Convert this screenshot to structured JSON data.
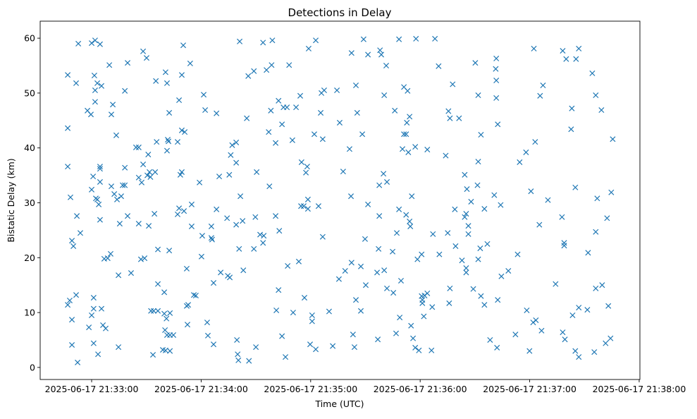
{
  "chart_data": {
    "type": "scatter",
    "title": "Detections in Delay",
    "xlabel": "Time (UTC)",
    "ylabel": "Bistatic Delay (km)",
    "x_unit": "seconds after 2025-06-17 21:32:00",
    "xlim": [
      31.8,
      360.4
    ],
    "ylim": [
      -2.2,
      63.1
    ],
    "grid": false,
    "marker": "x",
    "color": "#1f77b4",
    "x_ticks": [
      {
        "value": 60,
        "label": "2025-06-17 21:33:00"
      },
      {
        "value": 120,
        "label": "2025-06-17 21:34:00"
      },
      {
        "value": 180,
        "label": "2025-06-17 21:35:00"
      },
      {
        "value": 240,
        "label": "2025-06-17 21:36:00"
      },
      {
        "value": 300,
        "label": "2025-06-17 21:37:00"
      },
      {
        "value": 360,
        "label": "2025-06-17 21:38:00"
      }
    ],
    "y_ticks": [
      {
        "value": 0,
        "label": "0"
      },
      {
        "value": 10,
        "label": "10"
      },
      {
        "value": 20,
        "label": "20"
      },
      {
        "value": 30,
        "label": "30"
      },
      {
        "value": 40,
        "label": "40"
      },
      {
        "value": 50,
        "label": "50"
      },
      {
        "value": 60,
        "label": "60"
      }
    ],
    "points": [
      [
        46.9,
        53.3
      ],
      [
        46.9,
        43.6
      ],
      [
        46.9,
        36.6
      ],
      [
        48.4,
        31.0
      ],
      [
        49.2,
        23.1
      ],
      [
        50.0,
        22.1
      ],
      [
        46.9,
        11.4
      ],
      [
        48.0,
        12.2
      ],
      [
        49.2,
        8.7
      ],
      [
        49.2,
        4.1
      ],
      [
        51.5,
        13.2
      ],
      [
        52.3,
        0.9
      ],
      [
        52.7,
        59.0
      ],
      [
        51.5,
        51.8
      ],
      [
        51.9,
        27.6
      ],
      [
        53.8,
        24.5
      ],
      [
        57.7,
        46.8
      ],
      [
        59.6,
        46.1
      ],
      [
        60.0,
        59.1
      ],
      [
        61.9,
        59.6
      ],
      [
        64.6,
        58.9
      ],
      [
        61.5,
        53.2
      ],
      [
        61.9,
        50.5
      ],
      [
        63.1,
        51.8
      ],
      [
        65.4,
        51.3
      ],
      [
        61.9,
        48.4
      ],
      [
        60.8,
        34.8
      ],
      [
        60.0,
        32.4
      ],
      [
        62.3,
        30.8
      ],
      [
        63.9,
        29.7
      ],
      [
        63.1,
        30.6
      ],
      [
        64.6,
        36.6
      ],
      [
        64.6,
        36.2
      ],
      [
        64.6,
        33.8
      ],
      [
        64.6,
        26.9
      ],
      [
        58.5,
        7.3
      ],
      [
        60.0,
        9.5
      ],
      [
        61.1,
        12.7
      ],
      [
        61.1,
        10.7
      ],
      [
        61.1,
        4.4
      ],
      [
        63.5,
        2.4
      ],
      [
        65.4,
        10.7
      ],
      [
        66.2,
        7.7
      ],
      [
        67.7,
        7.1
      ],
      [
        66.9,
        19.8
      ],
      [
        68.8,
        19.9
      ],
      [
        70.4,
        20.7
      ],
      [
        69.7,
        55.1
      ],
      [
        71.6,
        47.9
      ],
      [
        70.8,
        46.1
      ],
      [
        73.5,
        42.3
      ],
      [
        70.8,
        33.0
      ],
      [
        72.4,
        31.6
      ],
      [
        73.9,
        30.6
      ],
      [
        76.2,
        31.2
      ],
      [
        77.0,
        33.2
      ],
      [
        78.2,
        33.2
      ],
      [
        75.4,
        26.2
      ],
      [
        74.7,
        16.8
      ],
      [
        74.7,
        3.7
      ],
      [
        78.2,
        50.4
      ],
      [
        79.7,
        55.5
      ],
      [
        78.2,
        36.4
      ],
      [
        79.7,
        27.6
      ],
      [
        81.6,
        17.2
      ],
      [
        84.3,
        40.1
      ],
      [
        85.8,
        40.1
      ],
      [
        85.8,
        34.6
      ],
      [
        87.4,
        33.7
      ],
      [
        88.2,
        37.0
      ],
      [
        85.8,
        26.2
      ],
      [
        87.0,
        19.7
      ],
      [
        89.0,
        19.9
      ],
      [
        88.2,
        57.6
      ],
      [
        90.1,
        56.4
      ],
      [
        90.5,
        35.0
      ],
      [
        91.7,
        35.6
      ],
      [
        91.0,
        38.8
      ],
      [
        92.2,
        34.7
      ],
      [
        91.3,
        25.8
      ],
      [
        92.5,
        10.3
      ],
      [
        94.0,
        10.3
      ],
      [
        93.6,
        2.3
      ],
      [
        95.2,
        52.2
      ],
      [
        95.6,
        41.1
      ],
      [
        94.8,
        35.6
      ],
      [
        94.4,
        28.0
      ],
      [
        96.3,
        21.5
      ],
      [
        96.3,
        15.2
      ],
      [
        96.3,
        10.3
      ],
      [
        100.5,
        53.8
      ],
      [
        101.3,
        51.8
      ],
      [
        102.5,
        46.4
      ],
      [
        101.7,
        41.5
      ],
      [
        101.3,
        39.5
      ],
      [
        102.1,
        41.2
      ],
      [
        99.8,
        13.7
      ],
      [
        99.8,
        9.8
      ],
      [
        101.0,
        8.9
      ],
      [
        102.9,
        9.9
      ],
      [
        100.2,
        6.8
      ],
      [
        101.3,
        5.9
      ],
      [
        102.9,
        5.9
      ],
      [
        99.0,
        3.2
      ],
      [
        100.5,
        3.1
      ],
      [
        102.9,
        3.0
      ],
      [
        104.8,
        5.9
      ],
      [
        102.5,
        21.3
      ],
      [
        107.1,
        41.1
      ],
      [
        107.9,
        48.7
      ],
      [
        108.6,
        35.1
      ],
      [
        109.4,
        35.6
      ],
      [
        110.2,
        58.7
      ],
      [
        109.4,
        53.3
      ],
      [
        109.4,
        43.2
      ],
      [
        111.0,
        42.9
      ],
      [
        107.9,
        29.0
      ],
      [
        107.1,
        27.9
      ],
      [
        110.6,
        28.5
      ],
      [
        114.0,
        55.4
      ],
      [
        114.8,
        29.7
      ],
      [
        114.8,
        25.7
      ],
      [
        112.1,
        18.0
      ],
      [
        112.9,
        11.4
      ],
      [
        112.1,
        11.2
      ],
      [
        112.5,
        7.8
      ],
      [
        116.0,
        13.2
      ],
      [
        117.1,
        13.1
      ],
      [
        119.1,
        33.7
      ],
      [
        121.4,
        49.7
      ],
      [
        122.2,
        46.9
      ],
      [
        120.6,
        24.0
      ],
      [
        120.2,
        20.2
      ],
      [
        123.3,
        8.2
      ],
      [
        123.7,
        5.8
      ],
      [
        126.8,
        4.2
      ],
      [
        126.0,
        23.3
      ],
      [
        125.6,
        25.7
      ],
      [
        125.6,
        23.6
      ],
      [
        126.8,
        15.4
      ],
      [
        128.4,
        46.3
      ],
      [
        128.4,
        28.8
      ],
      [
        129.9,
        34.8
      ],
      [
        130.7,
        17.3
      ],
      [
        134.6,
        16.7
      ],
      [
        135.7,
        16.4
      ],
      [
        134.2,
        27.2
      ],
      [
        135.4,
        35.1
      ],
      [
        136.2,
        38.7
      ],
      [
        137.0,
        40.5
      ],
      [
        139.2,
        41.0
      ],
      [
        139.2,
        37.3
      ],
      [
        139.2,
        26.0
      ],
      [
        139.6,
        5.0
      ],
      [
        140.0,
        2.4
      ],
      [
        140.4,
        1.3
      ],
      [
        141.1,
        59.4
      ],
      [
        140.8,
        21.6
      ],
      [
        141.5,
        31.2
      ],
      [
        142.7,
        26.7
      ],
      [
        143.1,
        17.7
      ],
      [
        145.0,
        45.4
      ],
      [
        145.8,
        53.1
      ],
      [
        146.2,
        1.2
      ],
      [
        148.9,
        54.0
      ],
      [
        148.9,
        21.6
      ],
      [
        150.4,
        35.6
      ],
      [
        149.7,
        27.4
      ],
      [
        150.0,
        3.7
      ],
      [
        152.3,
        24.2
      ],
      [
        154.3,
        24.0
      ],
      [
        153.9,
        22.7
      ],
      [
        153.9,
        59.2
      ],
      [
        155.8,
        54.2
      ],
      [
        157.0,
        42.9
      ],
      [
        157.4,
        33.0
      ],
      [
        158.2,
        46.8
      ],
      [
        158.6,
        55.1
      ],
      [
        159.0,
        59.6
      ],
      [
        161.2,
        10.4
      ],
      [
        160.8,
        27.6
      ],
      [
        160.8,
        40.9
      ],
      [
        162.4,
        48.6
      ],
      [
        162.4,
        14.1
      ],
      [
        162.8,
        24.9
      ],
      [
        164.3,
        44.3
      ],
      [
        164.3,
        5.7
      ],
      [
        165.1,
        47.4
      ],
      [
        166.2,
        1.9
      ],
      [
        167.0,
        47.4
      ],
      [
        167.4,
        18.5
      ],
      [
        168.2,
        55.1
      ],
      [
        170.0,
        41.4
      ],
      [
        170.4,
        10.0
      ],
      [
        172.0,
        47.4
      ],
      [
        173.5,
        19.3
      ],
      [
        174.3,
        49.5
      ],
      [
        175.0,
        37.4
      ],
      [
        174.7,
        29.4
      ],
      [
        176.2,
        29.4
      ],
      [
        176.6,
        12.7
      ],
      [
        177.4,
        35.5
      ],
      [
        178.1,
        36.6
      ],
      [
        178.5,
        30.6
      ],
      [
        178.5,
        28.9
      ],
      [
        178.9,
        58.1
      ],
      [
        179.7,
        4.2
      ],
      [
        180.8,
        9.5
      ],
      [
        180.8,
        8.4
      ],
      [
        182.0,
        42.5
      ],
      [
        182.8,
        59.6
      ],
      [
        182.8,
        3.3
      ],
      [
        184.3,
        29.4
      ],
      [
        185.5,
        46.4
      ],
      [
        186.6,
        23.8
      ],
      [
        185.9,
        50.0
      ],
      [
        187.4,
        50.5
      ],
      [
        186.6,
        41.6
      ],
      [
        190.1,
        10.2
      ],
      [
        192.1,
        3.9
      ],
      [
        194.4,
        50.5
      ],
      [
        195.5,
        16.1
      ],
      [
        195.9,
        44.6
      ],
      [
        197.8,
        35.7
      ],
      [
        198.9,
        17.6
      ],
      [
        201.3,
        39.8
      ],
      [
        202.1,
        31.2
      ],
      [
        202.4,
        19.1
      ],
      [
        202.4,
        57.3
      ],
      [
        203.2,
        6.0
      ],
      [
        204.0,
        3.7
      ],
      [
        204.8,
        12.3
      ],
      [
        204.8,
        51.4
      ],
      [
        205.5,
        46.4
      ],
      [
        207.5,
        10.3
      ],
      [
        207.5,
        18.4
      ],
      [
        208.3,
        42.5
      ],
      [
        209.0,
        59.8
      ],
      [
        209.8,
        23.4
      ],
      [
        210.2,
        15.0
      ],
      [
        211.4,
        57.0
      ],
      [
        211.4,
        29.7
      ],
      [
        216.4,
        17.3
      ],
      [
        216.8,
        5.1
      ],
      [
        217.2,
        21.6
      ],
      [
        217.6,
        33.2
      ],
      [
        217.6,
        27.6
      ],
      [
        218.0,
        57.8
      ],
      [
        218.7,
        57.0
      ],
      [
        219.9,
        35.3
      ],
      [
        220.3,
        17.7
      ],
      [
        220.3,
        49.6
      ],
      [
        221.4,
        55.0
      ],
      [
        221.8,
        33.8
      ],
      [
        221.8,
        14.4
      ],
      [
        224.9,
        21.1
      ],
      [
        225.3,
        13.6
      ],
      [
        226.1,
        46.8
      ],
      [
        226.8,
        6.2
      ],
      [
        227.2,
        24.5
      ],
      [
        228.4,
        59.8
      ],
      [
        228.8,
        9.1
      ],
      [
        228.4,
        28.8
      ],
      [
        229.5,
        15.8
      ],
      [
        230.3,
        39.8
      ],
      [
        231.1,
        42.5
      ],
      [
        231.1,
        51.1
      ],
      [
        232.3,
        42.5
      ],
      [
        232.3,
        27.8
      ],
      [
        232.7,
        44.6
      ],
      [
        233.1,
        50.4
      ],
      [
        233.5,
        39.2
      ],
      [
        234.2,
        26.6
      ],
      [
        234.2,
        45.7
      ],
      [
        234.6,
        25.7
      ],
      [
        235.0,
        7.6
      ],
      [
        235.4,
        31.2
      ],
      [
        236.1,
        5.3
      ],
      [
        237.3,
        3.6
      ],
      [
        237.7,
        59.9
      ],
      [
        237.3,
        40.2
      ],
      [
        238.5,
        19.7
      ],
      [
        239.3,
        3.1
      ],
      [
        240.8,
        20.6
      ],
      [
        240.8,
        13.0
      ],
      [
        241.2,
        12.3
      ],
      [
        241.2,
        11.7
      ],
      [
        242.0,
        9.3
      ],
      [
        242.4,
        13.1
      ],
      [
        243.9,
        13.5
      ],
      [
        243.9,
        39.7
      ],
      [
        246.2,
        3.1
      ],
      [
        247.0,
        24.3
      ],
      [
        246.6,
        11.0
      ],
      [
        248.1,
        59.9
      ],
      [
        250.1,
        54.9
      ],
      [
        250.5,
        20.6
      ],
      [
        254.0,
        38.6
      ],
      [
        255.1,
        24.5
      ],
      [
        255.5,
        46.7
      ],
      [
        256.3,
        45.4
      ],
      [
        256.3,
        14.4
      ],
      [
        255.9,
        11.7
      ],
      [
        257.8,
        51.6
      ],
      [
        259.0,
        28.8
      ],
      [
        259.4,
        22.1
      ],
      [
        261.3,
        45.4
      ],
      [
        262.9,
        19.5
      ],
      [
        264.4,
        35.1
      ],
      [
        265.2,
        18.1
      ],
      [
        265.6,
        32.5
      ],
      [
        265.2,
        17.3
      ],
      [
        264.4,
        27.4
      ],
      [
        265.2,
        28.0
      ],
      [
        266.4,
        25.8
      ],
      [
        266.4,
        24.3
      ],
      [
        267.9,
        30.2
      ],
      [
        269.1,
        14.3
      ],
      [
        270.2,
        55.5
      ],
      [
        271.4,
        33.2
      ],
      [
        271.8,
        49.6
      ],
      [
        271.8,
        37.5
      ],
      [
        271.8,
        19.7
      ],
      [
        273.3,
        13.0
      ],
      [
        273.3,
        42.4
      ],
      [
        272.9,
        21.7
      ],
      [
        275.2,
        28.9
      ],
      [
        275.2,
        11.4
      ],
      [
        276.8,
        22.5
      ],
      [
        278.3,
        5.0
      ],
      [
        280.6,
        31.4
      ],
      [
        281.4,
        54.4
      ],
      [
        281.7,
        56.3
      ],
      [
        281.7,
        52.3
      ],
      [
        281.7,
        49.1
      ],
      [
        282.1,
        3.6
      ],
      [
        282.5,
        12.3
      ],
      [
        282.5,
        44.3
      ],
      [
        284.1,
        29.6
      ],
      [
        284.5,
        16.6
      ],
      [
        288.3,
        17.6
      ],
      [
        292.2,
        6.0
      ],
      [
        293.4,
        20.6
      ],
      [
        294.5,
        37.4
      ],
      [
        298.0,
        39.2
      ],
      [
        298.4,
        10.4
      ],
      [
        299.9,
        3.0
      ],
      [
        300.7,
        32.1
      ],
      [
        301.9,
        8.2
      ],
      [
        302.3,
        58.1
      ],
      [
        303.0,
        41.1
      ],
      [
        303.4,
        8.6
      ],
      [
        305.7,
        49.5
      ],
      [
        305.3,
        26.0
      ],
      [
        306.5,
        6.7
      ],
      [
        307.3,
        51.4
      ],
      [
        310.0,
        30.5
      ],
      [
        314.2,
        15.2
      ],
      [
        317.7,
        27.4
      ],
      [
        318.1,
        57.7
      ],
      [
        318.1,
        6.4
      ],
      [
        318.9,
        22.2
      ],
      [
        318.9,
        22.7
      ],
      [
        319.3,
        5.1
      ],
      [
        320.0,
        56.2
      ],
      [
        322.7,
        43.4
      ],
      [
        323.1,
        47.2
      ],
      [
        323.5,
        9.5
      ],
      [
        325.0,
        3.0
      ],
      [
        325.4,
        56.2
      ],
      [
        325.0,
        32.8
      ],
      [
        326.9,
        58.1
      ],
      [
        326.9,
        10.9
      ],
      [
        326.9,
        1.9
      ],
      [
        332.0,
        20.9
      ],
      [
        331.6,
        10.5
      ],
      [
        334.3,
        53.6
      ],
      [
        335.4,
        2.8
      ],
      [
        336.2,
        24.7
      ],
      [
        336.2,
        14.4
      ],
      [
        336.2,
        49.6
      ],
      [
        337.0,
        30.8
      ],
      [
        339.3,
        46.9
      ],
      [
        339.7,
        15.0
      ],
      [
        341.6,
        4.4
      ],
      [
        342.4,
        27.2
      ],
      [
        343.1,
        11.2
      ],
      [
        344.3,
        5.3
      ],
      [
        344.7,
        31.9
      ],
      [
        345.5,
        41.6
      ]
    ]
  }
}
